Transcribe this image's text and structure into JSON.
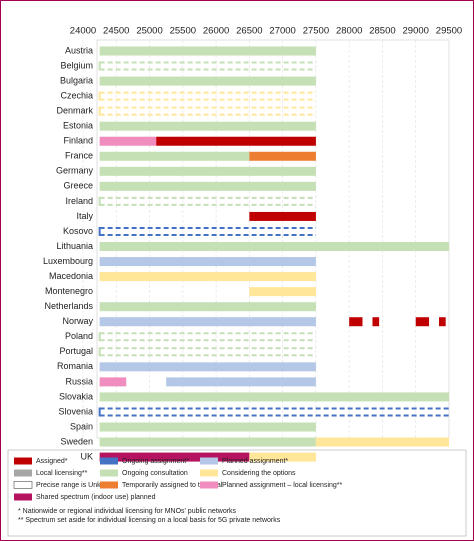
{
  "chart_data": {
    "type": "range",
    "xlim": [
      24000,
      29500
    ],
    "xticks": [
      24000,
      24500,
      25000,
      25500,
      26000,
      26500,
      27000,
      27500,
      28000,
      28500,
      29000,
      29500
    ],
    "statuses": [
      {
        "name": "Assigned*",
        "color": "#c00000"
      },
      {
        "name": "Ongoing assignment*",
        "color": "#4472c4"
      },
      {
        "name": "Planned assignment*",
        "color": "#b4c7e7"
      },
      {
        "name": "Local licensing**",
        "color": "#a6a6a6"
      },
      {
        "name": "Ongoing consultation",
        "color": "#c5e0b4"
      },
      {
        "name": "Considering the options",
        "color": "#ffe699"
      },
      {
        "name": "Precise range is Unknown",
        "color": "#ffffff"
      },
      {
        "name": "Temporarily assigned to test/trial",
        "color": "#ed7d31"
      },
      {
        "name": "Planned assignment – local licensing**",
        "color": "#f08cbe"
      },
      {
        "name": "Shared spectrum (indoor use) planned",
        "color": "#b5135f"
      }
    ],
    "rows": [
      {
        "name": "Austria",
        "segments": [
          {
            "status": 4,
            "start": 24250,
            "end": 27500
          }
        ]
      },
      {
        "name": "Belgium",
        "segments": [
          {
            "status": 4,
            "start": 24250,
            "end": 27500,
            "unknown": true
          }
        ]
      },
      {
        "name": "Bulgaria",
        "segments": [
          {
            "status": 4,
            "start": 24250,
            "end": 27500
          }
        ]
      },
      {
        "name": "Czechia",
        "segments": [
          {
            "status": 5,
            "start": 24250,
            "end": 27500,
            "unknown": true
          }
        ]
      },
      {
        "name": "Denmark",
        "segments": [
          {
            "status": 5,
            "start": 24250,
            "end": 27500,
            "unknown": true
          }
        ]
      },
      {
        "name": "Estonia",
        "segments": [
          {
            "status": 4,
            "start": 24250,
            "end": 27500
          }
        ]
      },
      {
        "name": "Finland",
        "segments": [
          {
            "status": 8,
            "start": 24250,
            "end": 25100
          },
          {
            "status": 0,
            "start": 25100,
            "end": 27500
          }
        ]
      },
      {
        "name": "France",
        "segments": [
          {
            "status": 4,
            "start": 24250,
            "end": 26500
          },
          {
            "status": 7,
            "start": 26500,
            "end": 27500
          }
        ]
      },
      {
        "name": "Germany",
        "segments": [
          {
            "status": 4,
            "start": 24250,
            "end": 27500
          }
        ]
      },
      {
        "name": "Greece",
        "segments": [
          {
            "status": 4,
            "start": 24250,
            "end": 27500
          }
        ]
      },
      {
        "name": "Ireland",
        "segments": [
          {
            "status": 4,
            "start": 24250,
            "end": 27500,
            "unknown": true
          }
        ]
      },
      {
        "name": "Italy",
        "segments": [
          {
            "status": 0,
            "start": 26500,
            "end": 27500
          }
        ]
      },
      {
        "name": "Kosovo",
        "segments": [
          {
            "status": 1,
            "start": 24250,
            "end": 27500,
            "unknown": true
          }
        ]
      },
      {
        "name": "Lithuania",
        "segments": [
          {
            "status": 4,
            "start": 24250,
            "end": 29500
          }
        ]
      },
      {
        "name": "Luxembourg",
        "segments": [
          {
            "status": 2,
            "start": 24250,
            "end": 27500
          }
        ]
      },
      {
        "name": "Macedonia",
        "segments": [
          {
            "status": 5,
            "start": 24250,
            "end": 27500
          }
        ]
      },
      {
        "name": "Montenegro",
        "segments": [
          {
            "status": 5,
            "start": 26500,
            "end": 27500
          }
        ]
      },
      {
        "name": "Netherlands",
        "segments": [
          {
            "status": 4,
            "start": 24250,
            "end": 27500
          }
        ]
      },
      {
        "name": "Norway",
        "segments": [
          {
            "status": 2,
            "start": 24250,
            "end": 27500
          },
          {
            "status": 0,
            "start": 28000,
            "end": 28200
          },
          {
            "status": 0,
            "start": 28350,
            "end": 28450
          },
          {
            "status": 0,
            "start": 29000,
            "end": 29200
          },
          {
            "status": 0,
            "start": 29350,
            "end": 29450
          }
        ]
      },
      {
        "name": "Poland",
        "segments": [
          {
            "status": 4,
            "start": 24250,
            "end": 27500,
            "unknown": true
          }
        ]
      },
      {
        "name": "Portugal",
        "segments": [
          {
            "status": 4,
            "start": 24250,
            "end": 27500,
            "unknown": true
          }
        ]
      },
      {
        "name": "Romania",
        "segments": [
          {
            "status": 2,
            "start": 24250,
            "end": 27500
          }
        ]
      },
      {
        "name": "Russia",
        "segments": [
          {
            "status": 8,
            "start": 24250,
            "end": 24650
          },
          {
            "status": 2,
            "start": 25250,
            "end": 27500
          }
        ]
      },
      {
        "name": "Slovakia",
        "segments": [
          {
            "status": 4,
            "start": 24250,
            "end": 29500
          }
        ]
      },
      {
        "name": "Slovenia",
        "segments": [
          {
            "status": 1,
            "start": 24250,
            "end": 29500,
            "unknown": true
          }
        ]
      },
      {
        "name": "Spain",
        "segments": [
          {
            "status": 4,
            "start": 24250,
            "end": 27500
          }
        ]
      },
      {
        "name": "Sweden",
        "segments": [
          {
            "status": 4,
            "start": 24250,
            "end": 27500
          },
          {
            "status": 5,
            "start": 27500,
            "end": 29500
          }
        ]
      },
      {
        "name": "UK",
        "segments": [
          {
            "status": 9,
            "start": 24250,
            "end": 26500
          },
          {
            "status": 5,
            "start": 26500,
            "end": 27500
          }
        ]
      }
    ],
    "notes": [
      "* Nationwide or regional individual licensing for MNOs' public networks",
      "** Spectrum set aside for individual licensing on a local basis for 5G private networks"
    ]
  }
}
